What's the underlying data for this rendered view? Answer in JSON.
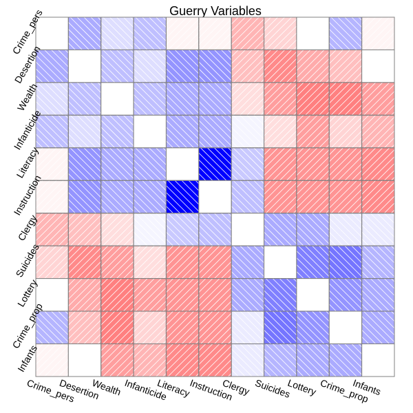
{
  "chart_data": {
    "type": "heatmap",
    "title": "Guerry Variables",
    "variables": [
      "Crime_pers",
      "Desertion",
      "Wealth",
      "Infanticide",
      "Literacy",
      "Instruction",
      "Clergy",
      "Suicides",
      "Lottery",
      "Crime_prop",
      "Infants"
    ],
    "values": [
      [
        1.0,
        -0.33,
        -0.13,
        -0.25,
        0.04,
        0.04,
        0.29,
        0.17,
        0.0,
        -0.29,
        0.04
      ],
      [
        -0.33,
        1.0,
        -0.25,
        -0.13,
        -0.42,
        -0.42,
        0.25,
        0.46,
        0.33,
        0.25,
        0.0
      ],
      [
        -0.13,
        -0.25,
        1.0,
        -0.25,
        -0.33,
        -0.33,
        0.13,
        0.38,
        0.5,
        0.5,
        0.38
      ],
      [
        -0.25,
        -0.13,
        -0.25,
        1.0,
        -0.33,
        -0.33,
        -0.04,
        0.13,
        0.38,
        0.17,
        0.29
      ],
      [
        0.04,
        -0.42,
        -0.33,
        -0.33,
        1.0,
        -1.0,
        -0.21,
        0.42,
        0.42,
        0.42,
        0.46
      ],
      [
        0.04,
        -0.42,
        -0.33,
        -0.33,
        -1.0,
        1.0,
        -0.25,
        0.42,
        0.42,
        0.42,
        0.46
      ],
      [
        0.29,
        0.25,
        0.13,
        -0.04,
        -0.21,
        -0.25,
        1.0,
        -0.33,
        -0.33,
        -0.08,
        -0.08
      ],
      [
        0.17,
        0.46,
        0.38,
        0.13,
        0.42,
        0.42,
        -0.33,
        1.0,
        -0.5,
        -0.54,
        -0.29
      ],
      [
        0.0,
        0.33,
        0.5,
        0.38,
        0.42,
        0.42,
        -0.33,
        -0.5,
        1.0,
        -0.42,
        -0.33
      ],
      [
        -0.29,
        0.25,
        0.5,
        0.17,
        0.42,
        0.42,
        -0.08,
        -0.54,
        -0.42,
        1.0,
        -0.33
      ],
      [
        0.04,
        0.0,
        0.38,
        0.29,
        0.46,
        0.46,
        -0.08,
        -0.29,
        -0.33,
        -0.33,
        1.0
      ]
    ],
    "value_range": [
      -1,
      1
    ],
    "colors": {
      "negative": "#0000ff",
      "positive": "#ff0000",
      "zero": "#ffffff",
      "grid": "#808080",
      "shading_lines": "#ffffff"
    },
    "shading": "diagonal lines in off-diagonal cells",
    "diagonal": "blank (white)",
    "grid": true,
    "legend": "none"
  }
}
